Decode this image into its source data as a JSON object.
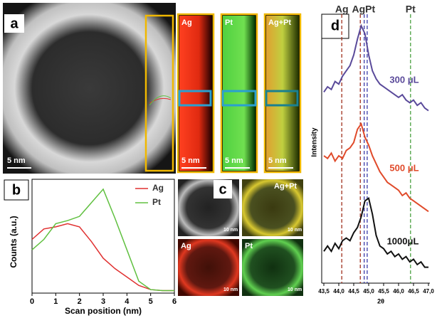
{
  "panel_a": {
    "label": "a",
    "scale": "5 nm",
    "maps": [
      {
        "name": "Ag",
        "scale": "5 nm"
      },
      {
        "name": "Pt",
        "scale": "5 nm"
      },
      {
        "name": "Ag+Pt",
        "scale": "5 nm"
      }
    ]
  },
  "panel_c": {
    "label": "c",
    "images": [
      {
        "scale": "10 nm"
      },
      {
        "name": "Ag+Pt",
        "scale": "10 nm"
      },
      {
        "name": "Ag",
        "scale": "10 nm"
      },
      {
        "name": "Pt",
        "scale": "10 nm"
      }
    ]
  },
  "chart_data": [
    {
      "type": "line",
      "label": "b",
      "x_label": "Scan position (nm)",
      "y_label": "Counts (a.u.)",
      "x": [
        0,
        0.5,
        1,
        1.5,
        2,
        2.5,
        3,
        3.5,
        4,
        4.5,
        5,
        5.5,
        6
      ],
      "series": [
        {
          "name": "Ag",
          "color": "#e03030",
          "values": [
            0.5,
            0.6,
            0.62,
            0.65,
            0.62,
            0.48,
            0.32,
            0.22,
            0.14,
            0.06,
            0.02,
            0.01,
            0.01
          ]
        },
        {
          "name": "Pt",
          "color": "#60c040",
          "values": [
            0.4,
            0.5,
            0.65,
            0.68,
            0.72,
            0.85,
            0.98,
            0.7,
            0.4,
            0.1,
            0.02,
            0.01,
            0.01
          ]
        }
      ],
      "xlim": [
        0,
        6
      ],
      "xticks": [
        0,
        1,
        2,
        3,
        4,
        5,
        6
      ],
      "ylim": [
        0,
        1
      ]
    },
    {
      "type": "line",
      "label": "d",
      "x_label": "2θ",
      "y_label": "Intensity",
      "x": [
        43.5,
        43.625,
        43.75,
        43.875,
        44.0,
        44.125,
        44.25,
        44.375,
        44.5,
        44.625,
        44.75,
        44.875,
        45.0,
        45.125,
        45.25,
        45.375,
        45.5,
        45.625,
        45.75,
        45.875,
        46.0,
        46.125,
        46.25,
        46.375,
        46.5,
        46.625,
        46.75,
        46.875,
        47.0
      ],
      "series": [
        {
          "name": "300 μL",
          "color": "#5a4a9a",
          "values": [
            72,
            74,
            73,
            76,
            75,
            78,
            80,
            82,
            86,
            92,
            97,
            94,
            86,
            80,
            77,
            75,
            74,
            73,
            72,
            71,
            70,
            71,
            69,
            68,
            69,
            67,
            68,
            66,
            65
          ]
        },
        {
          "name": "500 μL",
          "color": "#e04a2a",
          "values": [
            48,
            47,
            49,
            46,
            48,
            47,
            50,
            51,
            53,
            58,
            60,
            55,
            52,
            48,
            45,
            42,
            40,
            38,
            37,
            36,
            35,
            33,
            34,
            32,
            31,
            30,
            29,
            28,
            27
          ]
        },
        {
          "name": "1000μL",
          "color": "#111111",
          "values": [
            12,
            14,
            12,
            15,
            13,
            16,
            17,
            16,
            19,
            21,
            25,
            31,
            32,
            26,
            18,
            14,
            13,
            11,
            12,
            10,
            11,
            9,
            10,
            8,
            9,
            7,
            8,
            6,
            6
          ]
        }
      ],
      "markers": [
        {
          "x": 44.1,
          "color": "#a0301c"
        },
        {
          "x": 44.72,
          "color": "#a0301c"
        },
        {
          "x": 44.85,
          "color": "#3a3aa8"
        },
        {
          "x": 44.95,
          "color": "#3a3aa8"
        },
        {
          "x": 46.4,
          "color": "#4aa040"
        }
      ],
      "marker_labels": [
        {
          "text": "Ag",
          "x": 44.1
        },
        {
          "text": "AgPt",
          "x": 44.83
        },
        {
          "text": "Pt",
          "x": 46.4
        }
      ],
      "xlim": [
        43.5,
        47.0
      ],
      "xticks": [
        {
          "value": 43.5,
          "label": "43,5"
        },
        {
          "value": 44.0,
          "label": "44,0"
        },
        {
          "value": 44.5,
          "label": "44,5"
        },
        {
          "value": 45.0,
          "label": "45,0"
        },
        {
          "value": 45.5,
          "label": "45,5"
        },
        {
          "value": 46.0,
          "label": "46,0"
        },
        {
          "value": 46.5,
          "label": "46,5"
        },
        {
          "value": 47.0,
          "label": "47,0"
        }
      ],
      "ylim": [
        0,
        100
      ]
    }
  ]
}
